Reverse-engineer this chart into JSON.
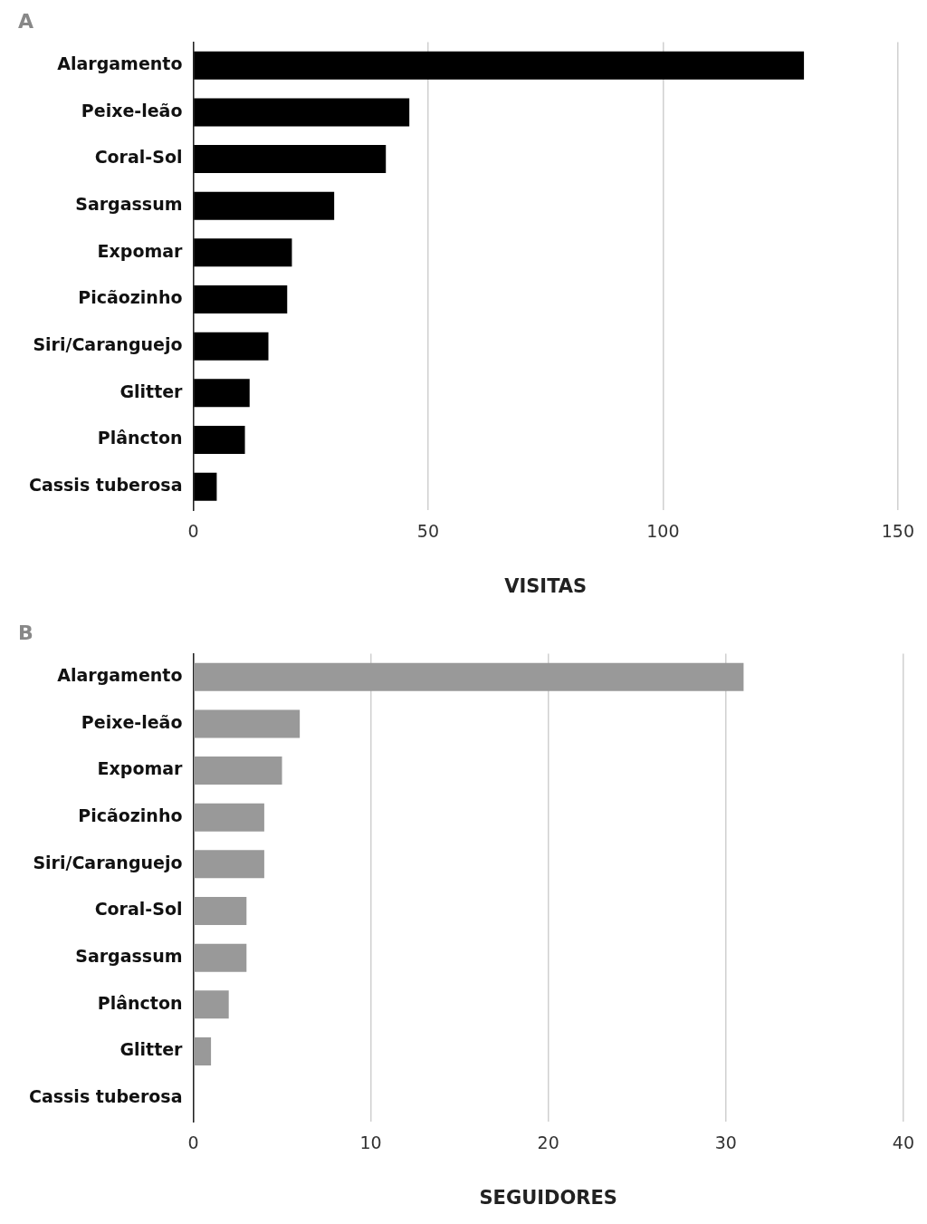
{
  "chart_data": [
    {
      "type": "bar",
      "title": "A",
      "orientation": "horizontal",
      "categories": [
        "Alargamento",
        "Peixe-leão",
        "Coral-Sol",
        "Sargassum",
        "Expomar",
        "Picãozinho",
        "Siri/Caranguejo",
        "Glitter",
        "Plâncton",
        "Cassis tuberosa"
      ],
      "values": [
        130,
        46,
        41,
        30,
        21,
        20,
        16,
        12,
        11,
        5
      ],
      "color": "#000000",
      "xlabel": "VISITAS",
      "xlim": [
        0,
        150
      ],
      "xticks": [
        0,
        50,
        100,
        150
      ],
      "grid": "x"
    },
    {
      "type": "bar",
      "title": "B",
      "orientation": "horizontal",
      "categories": [
        "Alargamento",
        "Peixe-leão",
        "Expomar",
        "Picãozinho",
        "Siri/Caranguejo",
        "Coral-Sol",
        "Sargassum",
        "Plâncton",
        "Glitter",
        "Cassis tuberosa"
      ],
      "values": [
        31,
        6,
        5,
        4,
        4,
        3,
        3,
        2,
        1,
        0
      ],
      "color": "#999999",
      "xlabel": "SEGUIDORES",
      "xlim": [
        0,
        40
      ],
      "xticks": [
        0,
        10,
        20,
        30,
        40
      ],
      "grid": "x"
    }
  ]
}
